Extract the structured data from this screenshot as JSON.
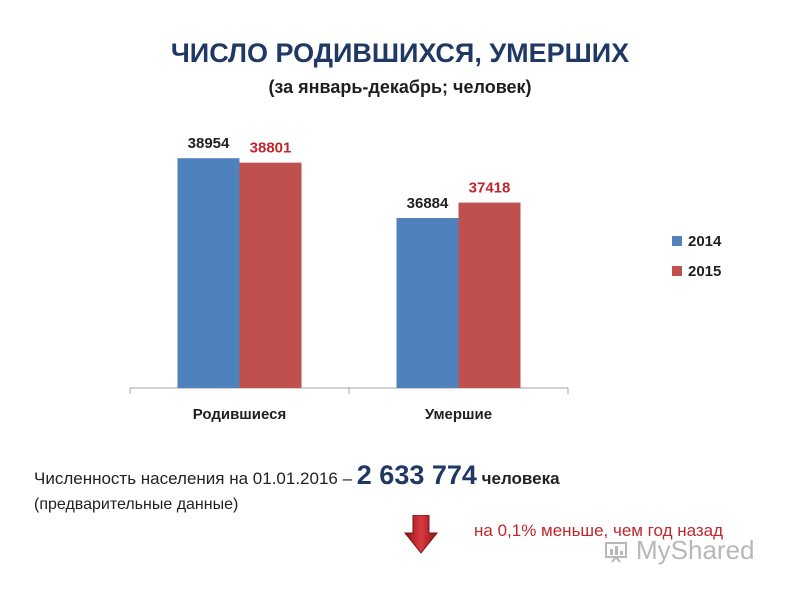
{
  "chart_data": {
    "type": "bar",
    "title": "ЧИСЛО РОДИВШИХСЯ, УМЕРШИХ",
    "subtitle": "(за январь-декабрь; человек)",
    "categories": [
      "Родившиеся",
      "Умершие"
    ],
    "series": [
      {
        "name": "2014",
        "values": [
          38954,
          36884
        ],
        "color": "#4f81bd"
      },
      {
        "name": "2015",
        "values": [
          38801,
          37418
        ],
        "color": "#c0504d"
      }
    ],
    "ylim": [
      31000,
      40000
    ],
    "grid": false,
    "legend": "right"
  },
  "population": {
    "label": "Численность населения на 01.01.2016 –",
    "value": "2 633 774",
    "unit": "человека",
    "note": "(предварительные данные)",
    "change": "на 0,1% меньше, чем год назад"
  },
  "icons": {
    "arrow": "down-arrow-icon",
    "arrow_color": "#c0272d"
  },
  "watermark": {
    "text": "MyShared"
  }
}
